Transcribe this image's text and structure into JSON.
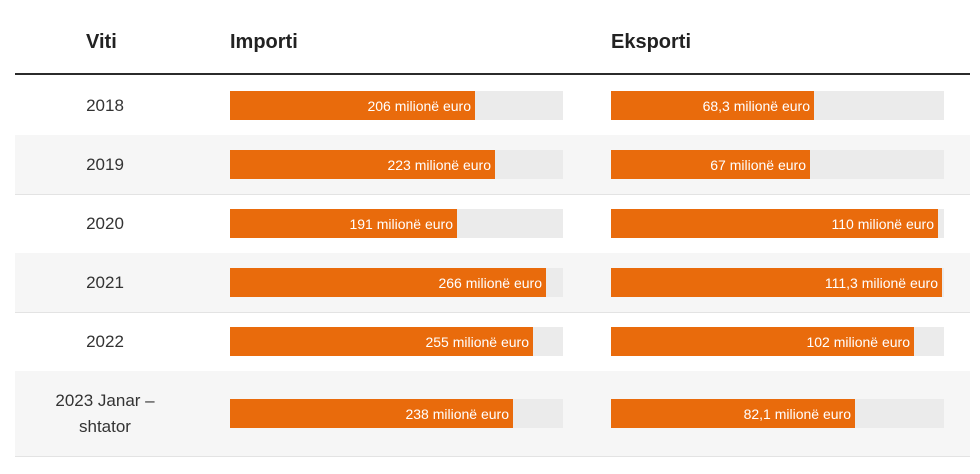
{
  "chart_data": {
    "type": "table",
    "columns": [
      "Viti",
      "Importi",
      "Eksporti"
    ],
    "unit_label": "milionë euro",
    "max_value": 280,
    "rows": [
      {
        "year": "2018",
        "import_value": 206,
        "import_label": "206 milionë euro",
        "export_value": 68.3,
        "export_label": "68,3 milionë euro"
      },
      {
        "year": "2019",
        "import_value": 223,
        "import_label": "223 milionë euro",
        "export_value": 67,
        "export_label": "67 milionë euro"
      },
      {
        "year": "2020",
        "import_value": 191,
        "import_label": "191 milionë euro",
        "export_value": 110,
        "export_label": "110 milionë euro"
      },
      {
        "year": "2021",
        "import_value": 266,
        "import_label": "266 milionë euro",
        "export_value": 111.3,
        "export_label": "111,3 milionë euro"
      },
      {
        "year": "2022",
        "import_value": 255,
        "import_label": "255 milionë euro",
        "export_value": 102,
        "export_label": "102 milionë euro"
      },
      {
        "year": "2023 Janar – shtator",
        "import_value": 238,
        "import_label": "238 milionë euro",
        "export_value": 82.1,
        "export_label": "82,1 milionë euro"
      }
    ]
  },
  "colors": {
    "bar": "#e96b0c",
    "track": "#ebebeb",
    "alt_row": "#f6f6f6"
  }
}
